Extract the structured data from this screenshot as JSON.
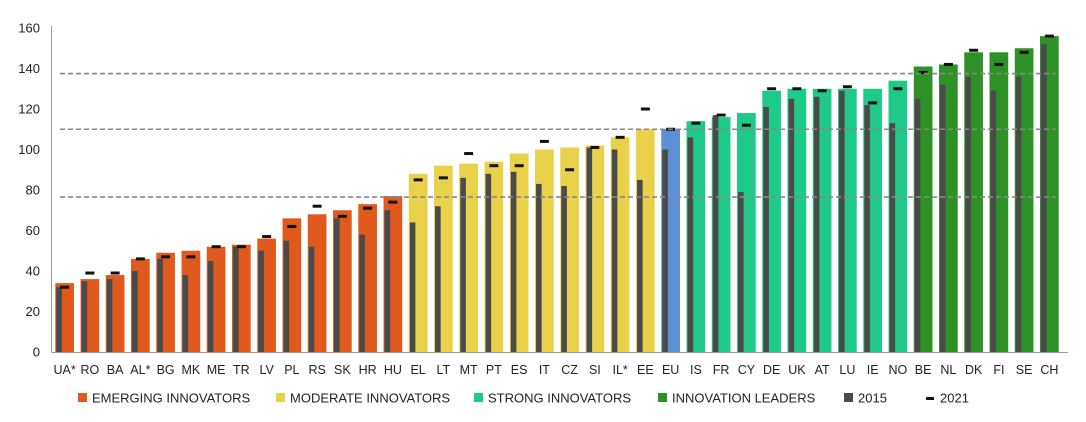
{
  "chart_data": {
    "type": "bar",
    "title": "",
    "xlabel": "",
    "ylabel": "",
    "ylim": [
      0,
      160
    ],
    "yticks": [
      0,
      20,
      40,
      60,
      80,
      100,
      120,
      140,
      160
    ],
    "grid": false,
    "reference_lines": [
      76.5,
      110,
      137.5
    ],
    "colors": {
      "emerging": "#e05a1e",
      "moderate": "#e9d24a",
      "strong": "#1ec98a",
      "leader": "#2e9126",
      "eu": "#5b8fd6",
      "y2015": "#4a4a4a",
      "y2021": "#111111",
      "ref_line": "#888888"
    },
    "categories": [
      "UA*",
      "RO",
      "BA",
      "AL*",
      "BG",
      "MK",
      "ME",
      "TR",
      "LV",
      "PL",
      "RS",
      "SK",
      "HR",
      "HU",
      "EL",
      "LT",
      "MT",
      "PT",
      "ES",
      "IT",
      "CZ",
      "SI",
      "IL*",
      "EE",
      "EU",
      "IS",
      "FR",
      "CY",
      "DE",
      "UK",
      "AT",
      "LU",
      "IE",
      "NO",
      "BE",
      "NL",
      "DK",
      "FI",
      "SE",
      "CH"
    ],
    "groups": [
      "emerging",
      "emerging",
      "emerging",
      "emerging",
      "emerging",
      "emerging",
      "emerging",
      "emerging",
      "emerging",
      "emerging",
      "emerging",
      "emerging",
      "emerging",
      "emerging",
      "moderate",
      "moderate",
      "moderate",
      "moderate",
      "moderate",
      "moderate",
      "moderate",
      "moderate",
      "moderate",
      "moderate",
      "eu",
      "strong",
      "strong",
      "strong",
      "strong",
      "strong",
      "strong",
      "strong",
      "strong",
      "strong",
      "leader",
      "leader",
      "leader",
      "leader",
      "leader",
      "leader"
    ],
    "series": [
      {
        "key": "current",
        "values": [
          34,
          36,
          38,
          46,
          49,
          50,
          52,
          53,
          56,
          66,
          68,
          70,
          73,
          77,
          88,
          92,
          93,
          94,
          98,
          100,
          101,
          102,
          106,
          110,
          110,
          114,
          116,
          118,
          129,
          130,
          130,
          130,
          130,
          134,
          141,
          142,
          148,
          148,
          150,
          156
        ]
      },
      {
        "name": "2015",
        "values": [
          32,
          35,
          36,
          40,
          46,
          38,
          45,
          52,
          50,
          55,
          52,
          66,
          58,
          70,
          64,
          72,
          86,
          88,
          89,
          83,
          82,
          101,
          100,
          85,
          100,
          106,
          117,
          79,
          121,
          125,
          126,
          129,
          122,
          113,
          125,
          132,
          136,
          129,
          136,
          152
        ]
      },
      {
        "name": "2021",
        "values": [
          32,
          39,
          39,
          46,
          47,
          47,
          52,
          52,
          57,
          62,
          72,
          67,
          71,
          74,
          85,
          86,
          98,
          92,
          92,
          104,
          90,
          101,
          106,
          120,
          110,
          113,
          117,
          112,
          130,
          130,
          129,
          131,
          123,
          130,
          138,
          142,
          149,
          142,
          148,
          156
        ]
      }
    ],
    "legend": {
      "placement": "bottom",
      "items": [
        {
          "label": "EMERGING INNOVATORS",
          "group": "emerging",
          "kind": "box"
        },
        {
          "label": "MODERATE INNOVATORS",
          "group": "moderate",
          "kind": "box"
        },
        {
          "label": "STRONG INNOVATORS",
          "group": "strong",
          "kind": "box"
        },
        {
          "label": "INNOVATION LEADERS",
          "group": "leader",
          "kind": "box"
        },
        {
          "label": "2015",
          "group": "y2015",
          "kind": "box"
        },
        {
          "label": "2021",
          "group": "y2021",
          "kind": "dash"
        }
      ]
    }
  }
}
